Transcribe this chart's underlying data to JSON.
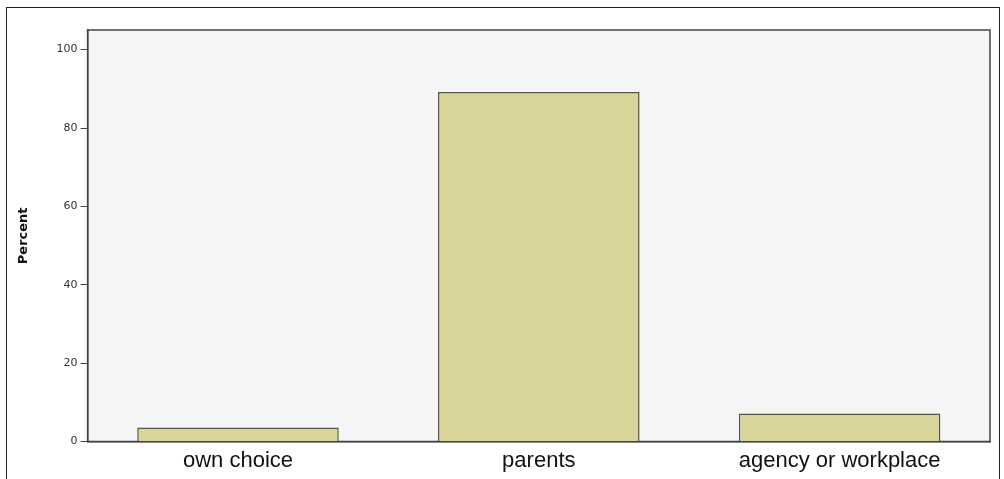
{
  "chart_data": {
    "type": "bar",
    "ylabel": "Percent",
    "categories": [
      "own choice",
      "parents",
      "agency or workplace"
    ],
    "values": [
      3.6,
      89.2,
      7.2
    ],
    "color": "#d8d49a",
    "ylim": [
      0,
      105
    ],
    "yticks": [
      0,
      20,
      40,
      60,
      80,
      100
    ],
    "grid": false,
    "legend": false
  }
}
